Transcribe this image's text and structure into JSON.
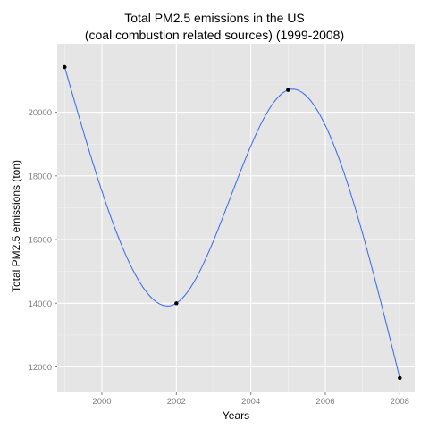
{
  "chart_data": {
    "type": "line",
    "title": [
      "Total PM2.5 emissions in the US",
      "(coal combustion related sources) (1999-2008)"
    ],
    "xlabel": "Years",
    "ylabel": "Total PM2.5 emissions (ton)",
    "x": [
      1999,
      2002,
      2005,
      2008
    ],
    "series": [
      {
        "values": [
          21420,
          14000,
          20700,
          11650
        ]
      }
    ],
    "xlim": [
      1998.8,
      2008.4
    ],
    "ylim": [
      11200,
      22150
    ],
    "xticks": [
      2000,
      2002,
      2004,
      2006,
      2008
    ],
    "yticks": [
      12000,
      14000,
      16000,
      18000,
      20000
    ],
    "grid": true,
    "smooth": true,
    "colors": {
      "panel": "#e5e5e5",
      "grid_major": "#ffffff",
      "grid_minor": "#f2f2f2",
      "line": "#3366ff",
      "point": "#000000",
      "tick_label": "#7f7f7f"
    }
  }
}
